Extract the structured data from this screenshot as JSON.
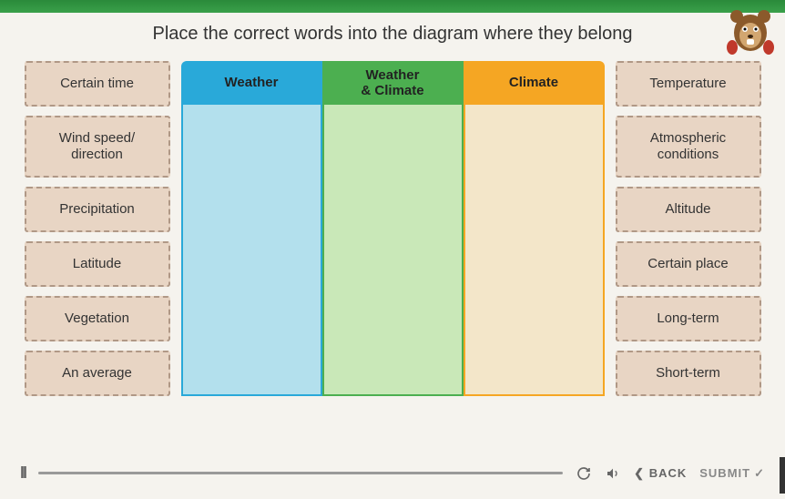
{
  "instruction": "Place the correct words into the diagram where they belong",
  "left_words": [
    "Certain time",
    "Wind speed/\ndirection",
    "Precipitation",
    "Latitude",
    "Vegetation",
    "An average"
  ],
  "right_words": [
    "Temperature",
    "Atmospheric\nconditions",
    "Altitude",
    "Certain place",
    "Long-term",
    "Short-term"
  ],
  "columns": {
    "weather": {
      "header": "Weather"
    },
    "both": {
      "header": "Weather\n& Climate"
    },
    "climate": {
      "header": "Climate"
    }
  },
  "footer": {
    "back": "BACK",
    "submit": "SUBMIT"
  },
  "colors": {
    "tile_bg": "#e8d5c4",
    "tile_border": "#b09886",
    "weather_header": "#29a9d9",
    "weather_body": "#b3e0ed",
    "both_header": "#4caf50",
    "both_body": "#c9e8b8",
    "climate_header": "#f5a623",
    "climate_body": "#f3e6c9",
    "page_bg": "#f5f3ee"
  }
}
